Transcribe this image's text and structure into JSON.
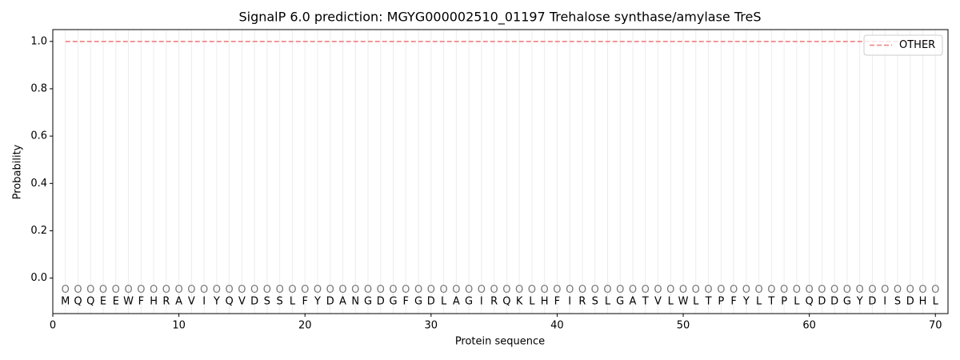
{
  "chart_data": {
    "type": "line",
    "title": "SignalP 6.0 prediction: MGYG000002510_01197 Trehalose synthase/amylase TreS",
    "x_label": "Protein sequence",
    "y_label": "Probability",
    "x": [
      1,
      2,
      3,
      4,
      5,
      6,
      7,
      8,
      9,
      10,
      11,
      12,
      13,
      14,
      15,
      16,
      17,
      18,
      19,
      20,
      21,
      22,
      23,
      24,
      25,
      26,
      27,
      28,
      29,
      30,
      31,
      32,
      33,
      34,
      35,
      36,
      37,
      38,
      39,
      40,
      41,
      42,
      43,
      44,
      45,
      46,
      47,
      48,
      49,
      50,
      51,
      52,
      53,
      54,
      55,
      56,
      57,
      58,
      59,
      60,
      61,
      62,
      63,
      64,
      65,
      66,
      67,
      68,
      69,
      70
    ],
    "sequence": [
      "M",
      "Q",
      "Q",
      "E",
      "E",
      "W",
      "F",
      "H",
      "R",
      "A",
      "V",
      "I",
      "Y",
      "Q",
      "V",
      "D",
      "S",
      "S",
      "L",
      "F",
      "Y",
      "D",
      "A",
      "N",
      "G",
      "D",
      "G",
      "F",
      "G",
      "D",
      "L",
      "A",
      "G",
      "I",
      "R",
      "Q",
      "K",
      "L",
      "H",
      "F",
      "I",
      "R",
      "S",
      "L",
      "G",
      "A",
      "T",
      "V",
      "L",
      "W",
      "L",
      "T",
      "P",
      "F",
      "Y",
      "L",
      "T",
      "P",
      "L",
      "Q",
      "D",
      "D",
      "G",
      "Y",
      "D",
      "I",
      "S",
      "D",
      "H",
      "L"
    ],
    "labels": [
      "O",
      "O",
      "O",
      "O",
      "O",
      "O",
      "O",
      "O",
      "O",
      "O",
      "O",
      "O",
      "O",
      "O",
      "O",
      "O",
      "O",
      "O",
      "O",
      "O",
      "O",
      "O",
      "O",
      "O",
      "O",
      "O",
      "O",
      "O",
      "O",
      "O",
      "O",
      "O",
      "O",
      "O",
      "O",
      "O",
      "O",
      "O",
      "O",
      "O",
      "O",
      "O",
      "O",
      "O",
      "O",
      "O",
      "O",
      "O",
      "O",
      "O",
      "O",
      "O",
      "O",
      "O",
      "O",
      "O",
      "O",
      "O",
      "O",
      "O",
      "O",
      "O",
      "O",
      "O",
      "O",
      "O",
      "O",
      "O",
      "O",
      "O"
    ],
    "series": [
      {
        "name": "OTHER",
        "color": "#f08080",
        "dashed": true,
        "values": [
          1.0,
          1.0,
          1.0,
          1.0,
          1.0,
          1.0,
          1.0,
          1.0,
          1.0,
          1.0,
          1.0,
          1.0,
          1.0,
          1.0,
          1.0,
          1.0,
          1.0,
          1.0,
          1.0,
          1.0,
          1.0,
          1.0,
          1.0,
          1.0,
          1.0,
          1.0,
          1.0,
          1.0,
          1.0,
          1.0,
          1.0,
          1.0,
          1.0,
          1.0,
          1.0,
          1.0,
          1.0,
          1.0,
          1.0,
          1.0,
          1.0,
          1.0,
          1.0,
          1.0,
          1.0,
          1.0,
          1.0,
          1.0,
          1.0,
          1.0,
          1.0,
          1.0,
          1.0,
          1.0,
          1.0,
          1.0,
          1.0,
          1.0,
          1.0,
          1.0,
          1.0,
          1.0,
          1.0,
          1.0,
          1.0,
          1.0,
          1.0,
          1.0,
          1.0,
          1.0
        ]
      }
    ],
    "xlim": [
      0,
      71
    ],
    "ylim": [
      -0.15,
      1.05
    ],
    "xticks": [
      0,
      10,
      20,
      30,
      40,
      50,
      60,
      70
    ],
    "yticks": [
      {
        "value": 0,
        "label": "0.0"
      },
      0.2,
      0.4,
      0.6,
      0.8,
      {
        "value": 1,
        "label": "1.0"
      }
    ],
    "legend": "upper right"
  }
}
